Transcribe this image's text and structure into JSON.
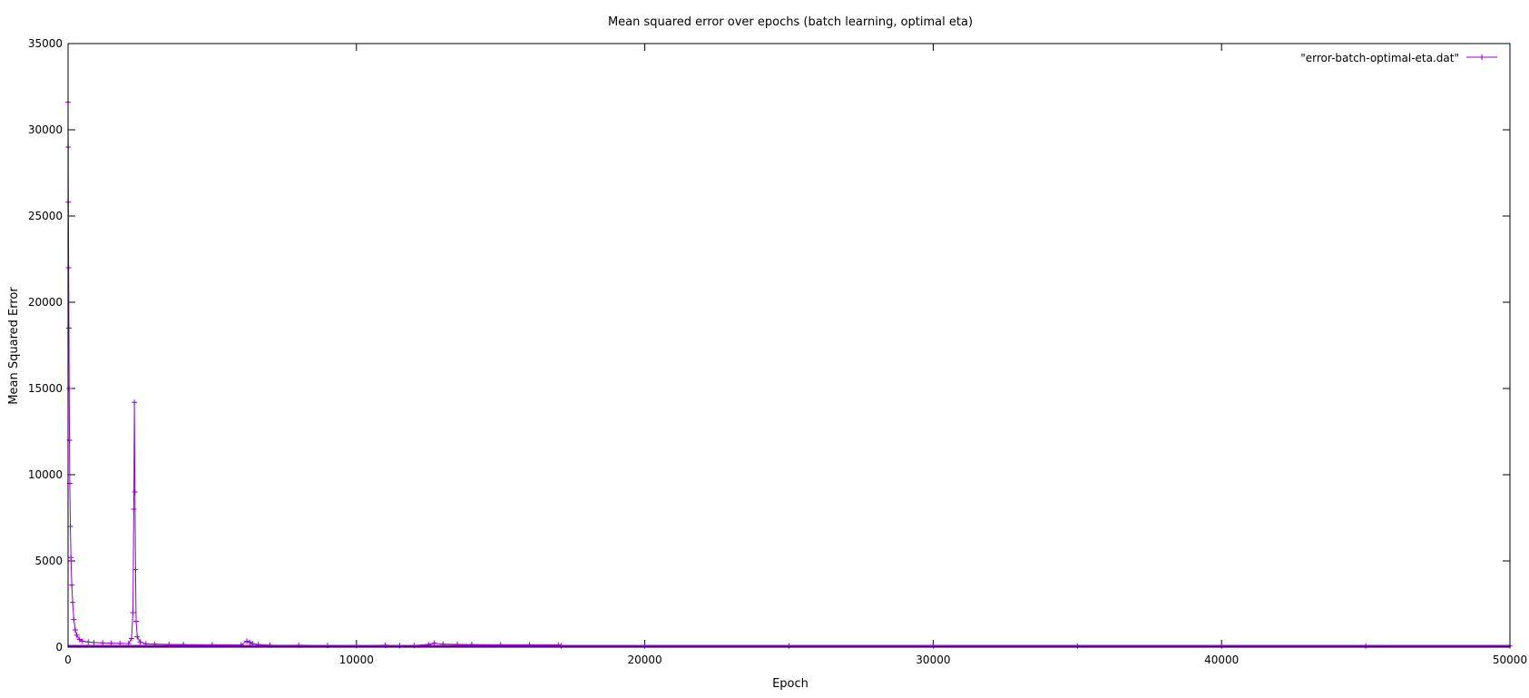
{
  "chart_data": {
    "type": "line",
    "title": "Mean squared error over epochs (batch learning, optimal eta)",
    "xlabel": "Epoch",
    "ylabel": "Mean Squared Error",
    "xlim": [
      0,
      50000
    ],
    "ylim": [
      0,
      35000
    ],
    "x_ticks": [
      0,
      10000,
      20000,
      30000,
      40000,
      50000
    ],
    "y_ticks": [
      0,
      5000,
      10000,
      15000,
      20000,
      25000,
      30000,
      35000
    ],
    "grid": false,
    "legend_position": "top-right",
    "series": [
      {
        "name": "\"error-batch-optimal-eta.dat\"",
        "color": "#9400d3",
        "marker": "plus",
        "x": [
          0,
          5,
          10,
          20,
          30,
          40,
          50,
          60,
          80,
          100,
          130,
          160,
          200,
          250,
          300,
          400,
          500,
          700,
          900,
          1200,
          1500,
          1800,
          2100,
          2200,
          2250,
          2280,
          2300,
          2320,
          2340,
          2360,
          2400,
          2500,
          2700,
          3000,
          3500,
          4000,
          5000,
          6000,
          6200,
          6300,
          6400,
          6600,
          7000,
          8000,
          9000,
          10000,
          11000,
          11500,
          12000,
          12500,
          12700,
          13000,
          13500,
          14000,
          15000,
          16000,
          17000,
          17100,
          20000,
          25000,
          30000,
          35000,
          40000,
          45000,
          50000
        ],
        "y": [
          31600,
          29000,
          25800,
          22000,
          18500,
          15000,
          12000,
          9500,
          7000,
          5200,
          3600,
          2600,
          1600,
          1000,
          700,
          450,
          350,
          300,
          270,
          250,
          230,
          220,
          210,
          500,
          2000,
          8000,
          14200,
          9000,
          4500,
          1500,
          600,
          300,
          200,
          180,
          160,
          150,
          140,
          130,
          350,
          280,
          200,
          150,
          120,
          110,
          100,
          95,
          110,
          90,
          100,
          160,
          230,
          180,
          160,
          150,
          140,
          135,
          130,
          80,
          75,
          72,
          70,
          68,
          66,
          65,
          64
        ]
      }
    ]
  }
}
